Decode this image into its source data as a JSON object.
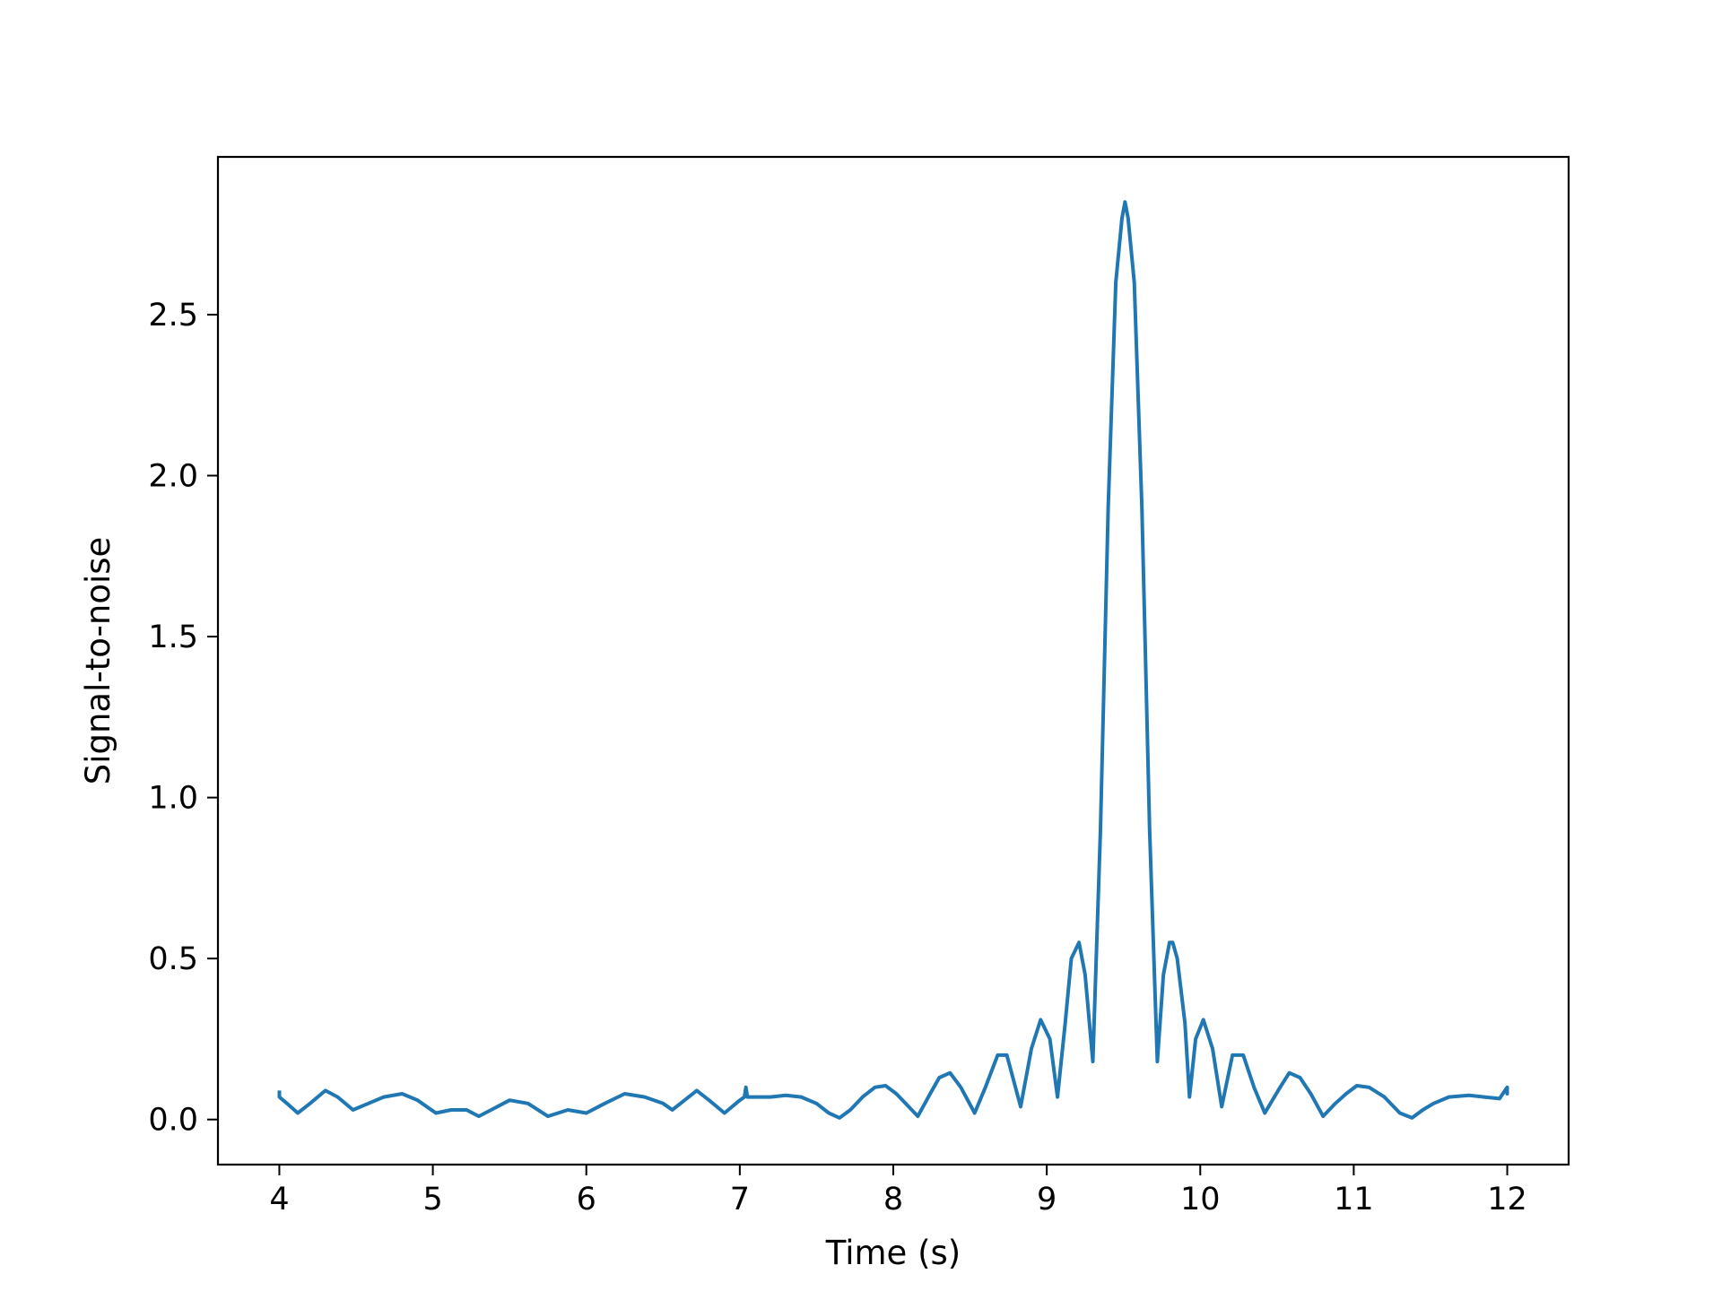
{
  "chart_data": {
    "type": "line",
    "title": "",
    "xlabel": "Time (s)",
    "ylabel": "Signal-to-noise",
    "xlim": [
      3.6,
      12.4
    ],
    "ylim": [
      -0.14,
      2.99
    ],
    "xticks": [
      4,
      5,
      6,
      7,
      8,
      9,
      10,
      11,
      12
    ],
    "xtick_labels": [
      "4",
      "5",
      "6",
      "7",
      "8",
      "9",
      "10",
      "11",
      "12"
    ],
    "yticks": [
      0.0,
      0.5,
      1.0,
      1.5,
      2.0,
      2.5
    ],
    "ytick_labels": [
      "0.0",
      "0.5",
      "1.0",
      "1.5",
      "2.0",
      "2.5"
    ],
    "grid": false,
    "legend": "none",
    "line_color": "#1f77b4",
    "series": [
      {
        "x": [
          4.0,
          4.0,
          4.05,
          4.12,
          4.2,
          4.3,
          4.38,
          4.48,
          4.58,
          4.68,
          4.8,
          4.9,
          5.02,
          5.12,
          5.22,
          5.3,
          5.38,
          5.5,
          5.62,
          5.75,
          5.88,
          6.0,
          6.12,
          6.25,
          6.38,
          6.5,
          6.56,
          6.64,
          6.72,
          6.8,
          6.9,
          7.0,
          7.03,
          7.04,
          7.05,
          7.1,
          7.2,
          7.3,
          7.4,
          7.5,
          7.58,
          7.65,
          7.72,
          7.8,
          7.88,
          7.95,
          8.02,
          8.08,
          8.16,
          8.24,
          8.3,
          8.37,
          8.44,
          8.53,
          8.6,
          8.68,
          8.74,
          8.83,
          8.9,
          8.96,
          9.02,
          9.07,
          9.12,
          9.16,
          9.21,
          9.25,
          9.3,
          9.35,
          9.4,
          9.45,
          9.49,
          9.51,
          9.53,
          9.57,
          9.62,
          9.67,
          9.72,
          9.76,
          9.8,
          9.82,
          9.85,
          9.9,
          9.93,
          9.97,
          10.02,
          10.08,
          10.14,
          10.21,
          10.28,
          10.35,
          10.42,
          10.52,
          10.58,
          10.65,
          10.72,
          10.8,
          10.88,
          10.95,
          11.02,
          11.1,
          11.2,
          11.3,
          11.38,
          11.45,
          11.52,
          11.62,
          11.75,
          11.85,
          11.95,
          12.0,
          12.0,
          12.0
        ],
        "y": [
          0.09,
          0.07,
          0.05,
          0.02,
          0.05,
          0.09,
          0.07,
          0.03,
          0.05,
          0.07,
          0.08,
          0.06,
          0.02,
          0.03,
          0.03,
          0.01,
          0.03,
          0.06,
          0.05,
          0.01,
          0.03,
          0.02,
          0.05,
          0.08,
          0.07,
          0.05,
          0.03,
          0.06,
          0.09,
          0.06,
          0.02,
          0.06,
          0.07,
          0.1,
          0.07,
          0.07,
          0.07,
          0.075,
          0.07,
          0.05,
          0.02,
          0.005,
          0.03,
          0.07,
          0.1,
          0.105,
          0.08,
          0.05,
          0.01,
          0.08,
          0.13,
          0.145,
          0.1,
          0.02,
          0.1,
          0.2,
          0.2,
          0.04,
          0.22,
          0.31,
          0.25,
          0.07,
          0.3,
          0.5,
          0.55,
          0.45,
          0.18,
          0.9,
          1.9,
          2.6,
          2.8,
          2.85,
          2.8,
          2.6,
          1.9,
          0.9,
          0.18,
          0.45,
          0.55,
          0.55,
          0.5,
          0.3,
          0.07,
          0.25,
          0.31,
          0.22,
          0.04,
          0.2,
          0.2,
          0.1,
          0.02,
          0.1,
          0.145,
          0.13,
          0.08,
          0.01,
          0.05,
          0.08,
          0.105,
          0.1,
          0.07,
          0.02,
          0.005,
          0.03,
          0.05,
          0.07,
          0.075,
          0.07,
          0.065,
          0.1,
          0.08,
          0.09
        ]
      }
    ]
  }
}
